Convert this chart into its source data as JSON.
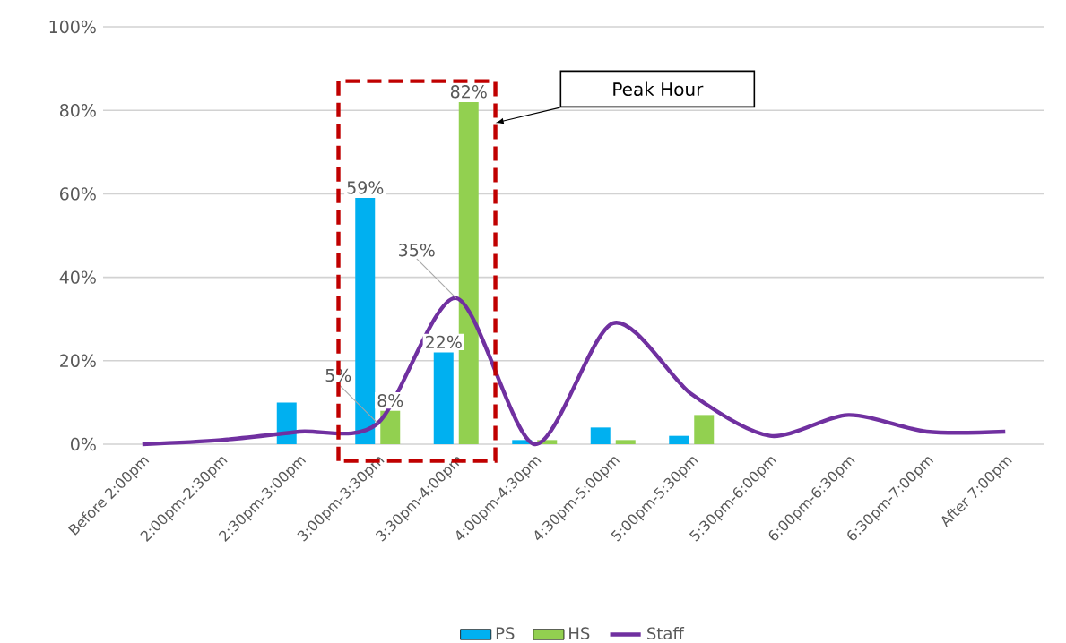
{
  "chart_data": {
    "type": "bar",
    "categories": [
      "Before 2:00pm",
      "2:00pm-2:30pm",
      "2:30pm-3:00pm",
      "3:00pm-3:30pm",
      "3:30pm-4:00pm",
      "4:00pm-4:30pm",
      "4:30pm-5:00pm",
      "5:00pm-5:30pm",
      "5:30pm-6:00pm",
      "6:00pm-6:30pm",
      "6:30pm-7:00pm",
      "After 7:00pm"
    ],
    "series": [
      {
        "name": "PS",
        "color": "#00b0f0",
        "values": [
          0,
          null,
          10,
          59,
          22,
          1,
          4,
          2,
          0,
          0,
          0,
          0
        ],
        "value_labels": [
          null,
          null,
          null,
          "59%",
          "22%",
          null,
          null,
          null,
          null,
          null,
          null,
          null
        ]
      },
      {
        "name": "HS",
        "color": "#92d050",
        "values": [
          null,
          0,
          0,
          8,
          82,
          1,
          1,
          7,
          0,
          0,
          0,
          0
        ],
        "value_labels": [
          null,
          null,
          null,
          "8%",
          "82%",
          null,
          null,
          null,
          null,
          null,
          null,
          null
        ]
      },
      {
        "name": "Staff",
        "type": "line",
        "color": "#7030a0",
        "values": [
          0,
          1,
          3,
          5,
          35,
          0,
          29,
          12,
          2,
          7,
          3,
          3
        ],
        "value_labels": [
          null,
          null,
          null,
          "5%",
          "35%",
          null,
          null,
          null,
          null,
          null,
          null,
          null
        ]
      }
    ],
    "ylim": [
      0,
      100
    ],
    "yticks": [
      {
        "value": 0,
        "label": "0%"
      },
      {
        "value": 20,
        "label": "20%"
      },
      {
        "value": 40,
        "label": "40%"
      },
      {
        "value": 60,
        "label": "60%"
      },
      {
        "value": 80,
        "label": "80%"
      },
      {
        "value": 100,
        "label": "100%"
      }
    ],
    "annotations": [
      "Peak Hour"
    ],
    "grid": "y",
    "legend": "bottom",
    "marker": "none",
    "line_style": "solid"
  }
}
